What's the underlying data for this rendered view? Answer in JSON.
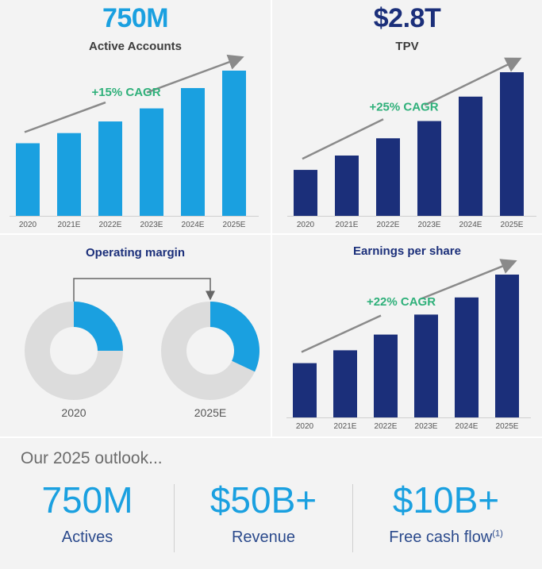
{
  "accounts": {
    "headline": "750M",
    "subtitle": "Active Accounts",
    "cagr_label": "+15% CAGR",
    "color": "#1aa0e0"
  },
  "tpv": {
    "headline": "$2.8T",
    "subtitle": "TPV",
    "cagr_label": "+25% CAGR",
    "color": "#1b2f7a"
  },
  "margin": {
    "title": "Operating margin",
    "labels": [
      "2020",
      "2025E"
    ],
    "accent": "#1aa0e0",
    "ring": "#dcdcdc"
  },
  "eps": {
    "title": "Earnings per share",
    "cagr_label": "+22% CAGR",
    "color": "#1b2f7a"
  },
  "chart_data": [
    {
      "type": "bar",
      "title": "Active Accounts",
      "categories": [
        "2020",
        "2021E",
        "2022E",
        "2023E",
        "2024E",
        "2025E"
      ],
      "values": [
        0.5,
        0.57,
        0.65,
        0.74,
        0.88,
        1.0
      ],
      "annotations": [
        "+15% CAGR"
      ]
    },
    {
      "type": "bar",
      "title": "TPV",
      "categories": [
        "2020",
        "2021E",
        "2022E",
        "2023E",
        "2024E",
        "2025E"
      ],
      "values": [
        0.32,
        0.42,
        0.54,
        0.66,
        0.83,
        1.0
      ],
      "annotations": [
        "+25% CAGR"
      ]
    },
    {
      "type": "pie",
      "title": "Operating margin",
      "categories": [
        "2020",
        "2025E"
      ],
      "values": [
        0.25,
        0.32
      ]
    },
    {
      "type": "bar",
      "title": "Earnings per share",
      "categories": [
        "2020",
        "2021E",
        "2022E",
        "2023E",
        "2024E",
        "2025E"
      ],
      "values": [
        0.38,
        0.47,
        0.58,
        0.72,
        0.84,
        1.0
      ],
      "annotations": [
        "+22% CAGR"
      ]
    }
  ],
  "outlook": {
    "heading": "Our 2025 outlook...",
    "items": [
      {
        "value": "750M",
        "label": "Actives",
        "sup": ""
      },
      {
        "value": "$50B+",
        "label": "Revenue",
        "sup": ""
      },
      {
        "value": "$10B+",
        "label": "Free cash flow",
        "sup": "(1)"
      }
    ]
  }
}
